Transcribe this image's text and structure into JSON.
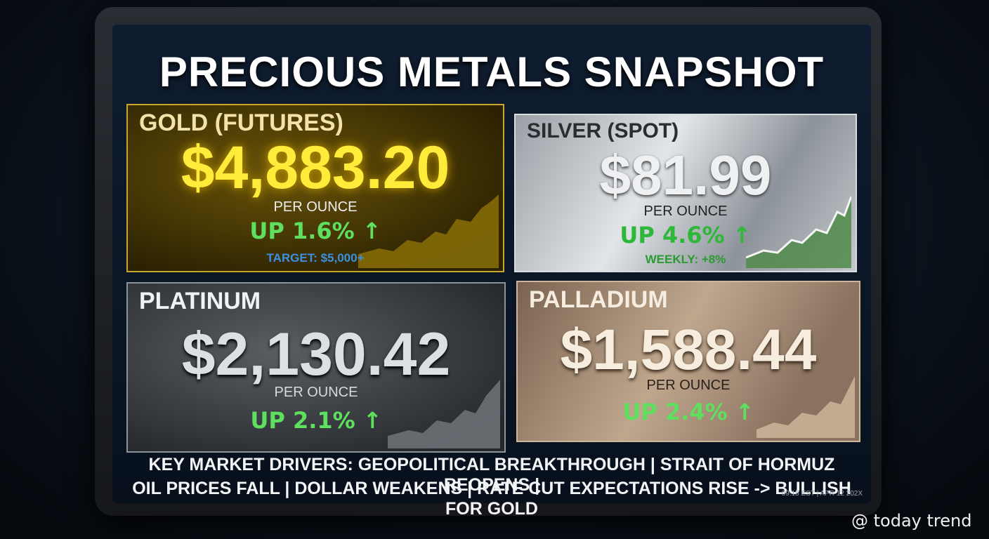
{
  "header": {
    "title": "PRECIOUS METALS SNAPSHOT"
  },
  "cards": [
    {
      "label": "GOLD (FUTURES)",
      "price": "$4,883.20",
      "unit": "PER OUNCE",
      "change": "UP 1.6% ↑",
      "note": "TARGET: $5,000+"
    },
    {
      "label": "SILVER (SPOT)",
      "price": "$81.99",
      "unit": "PER OUNCE",
      "change": "UP 4.6% ↑",
      "note": "WEEKLY: +8%"
    },
    {
      "label": "PLATINUM",
      "price": "$2,130.42",
      "unit": "PER OUNCE",
      "change": "UP 2.1% ↑"
    },
    {
      "label": "PALLADIUM",
      "price": "$1,588.44",
      "unit": "PER OUNCE",
      "change": "UP 2.4% ↑"
    }
  ],
  "footer": {
    "lines": [
      "KEY MARKET DRIVERS: GEOPOLITICAL BREAKTHROUGH | STRAIT OF HORMUZ REOPENS |",
      "OIL PRICES FALL | DOLLAR WEAKENS | RATE CUT EXPECTATIONS RISE -> BULLISH FOR GOLD"
    ],
    "timestamp": "09:15 EST | APR 12 202X"
  },
  "watermark": "@ today trend"
}
